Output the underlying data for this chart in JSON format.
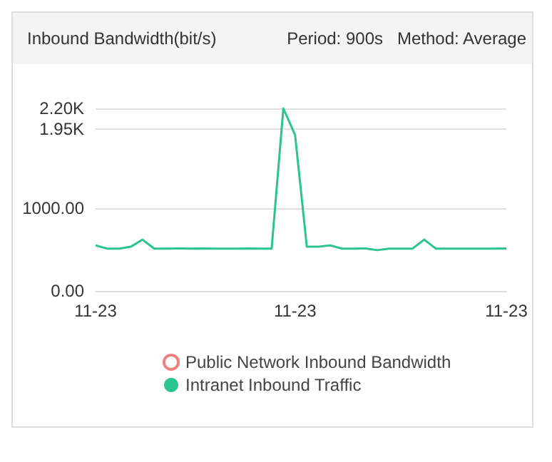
{
  "chart_data": {
    "type": "line",
    "title": "Inbound Bandwidth(bit/s)",
    "subtitle": "Period: 900s   Method: Average",
    "categories": [
      "11-23",
      null,
      null,
      null,
      null,
      null,
      null,
      null,
      null,
      null,
      null,
      null,
      null,
      null,
      null,
      null,
      null,
      "11-23",
      null,
      null,
      null,
      null,
      null,
      null,
      null,
      null,
      null,
      null,
      null,
      null,
      null,
      null,
      null,
      null,
      null,
      "11-23"
    ],
    "series": [
      {
        "name": "Public Network Inbound Bandwidth",
        "color": "#f08080",
        "values": [
          null,
          null,
          null,
          null,
          null,
          null,
          null,
          null,
          null,
          null,
          null,
          null,
          null,
          null,
          null,
          null,
          null,
          null,
          null,
          null,
          null,
          null,
          null,
          null,
          null,
          null,
          null,
          null,
          null,
          null,
          null,
          null,
          null,
          null,
          null,
          null
        ]
      },
      {
        "name": "Intranet Inbound Traffic",
        "color": "#2bc48e",
        "values": [
          549,
          509,
          509,
          532,
          618,
          509,
          509,
          512,
          509,
          512,
          509,
          509,
          509,
          512,
          509,
          509,
          2200,
          1879,
          532,
          532,
          549,
          509,
          509,
          512,
          491,
          509,
          509,
          509,
          618,
          509,
          509,
          509,
          509,
          509,
          509,
          512
        ]
      }
    ],
    "ylim": [
      0,
      2200
    ],
    "yticks": [
      {
        "value": 0,
        "label": "0.00"
      },
      {
        "value": 1000,
        "label": "1000.00"
      },
      {
        "value": 1950,
        "label": "1.95K"
      },
      {
        "value": 2200,
        "label": "2.20K"
      }
    ],
    "grid": "y",
    "legend": "bottom",
    "marker": "none",
    "line_style": "solid"
  }
}
